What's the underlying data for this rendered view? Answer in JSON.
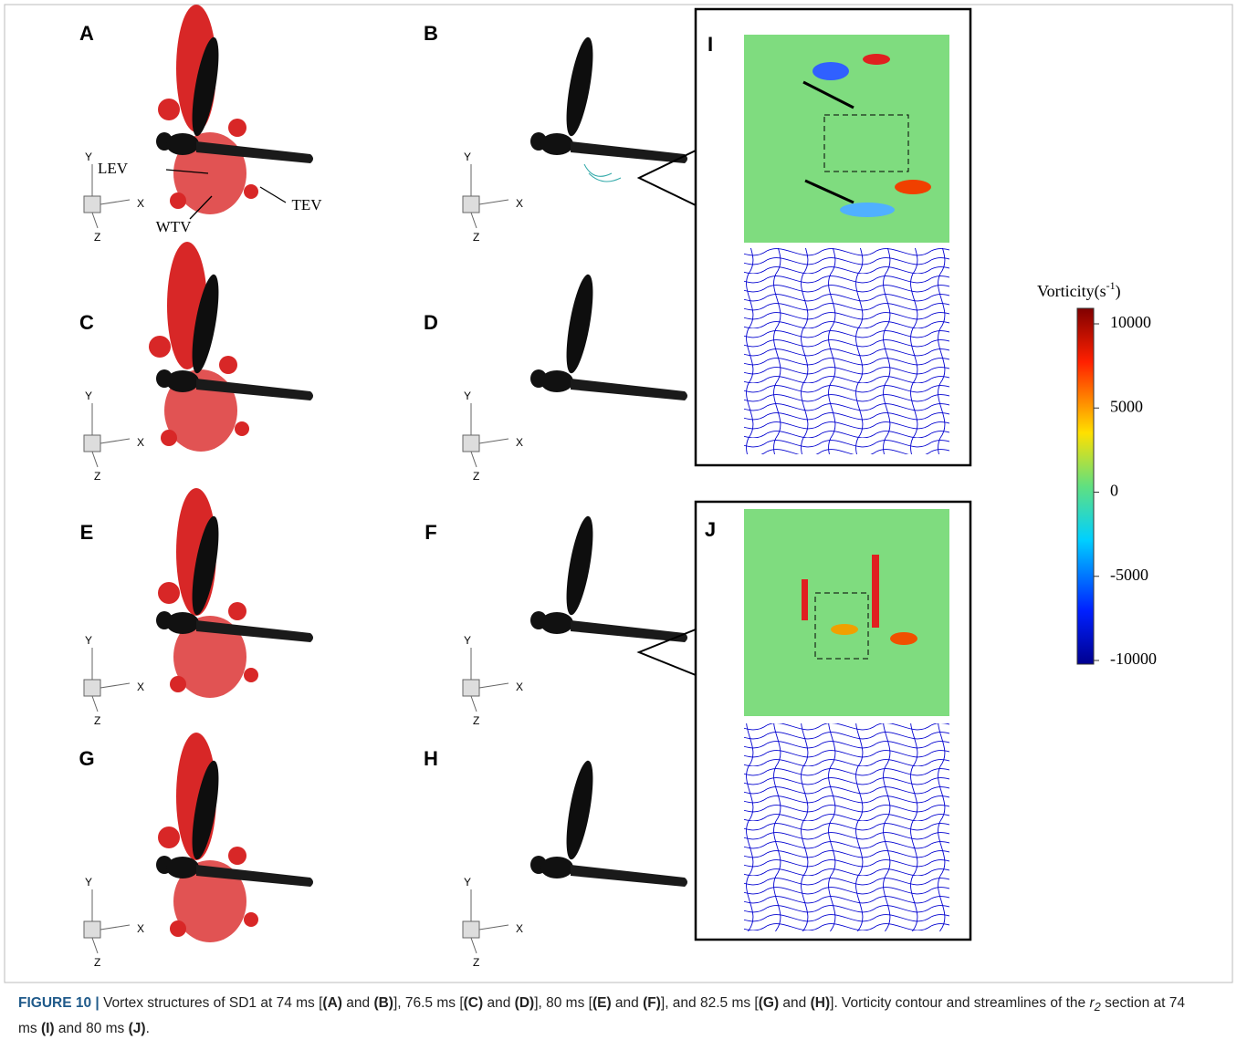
{
  "panel_labels": [
    "A",
    "B",
    "C",
    "D",
    "E",
    "F",
    "G",
    "H",
    "I",
    "J"
  ],
  "annotations": {
    "lev": "LEV",
    "wtv": "WTV",
    "tev": "TEV"
  },
  "axes_triads": [
    {
      "y": "Y",
      "x": "X",
      "z": "Z"
    },
    {
      "y": "Y",
      "x": "X",
      "z": "Z"
    },
    {
      "y": "Y",
      "x": "X",
      "z": "Z"
    },
    {
      "y": "Y",
      "x": "X",
      "z": "Z"
    },
    {
      "y": "Y",
      "x": "X",
      "z": "Z"
    },
    {
      "y": "Y",
      "x": "X",
      "z": "Z"
    },
    {
      "y": "Y",
      "x": "X",
      "z": "Z"
    },
    {
      "y": "Y",
      "x": "X",
      "z": "Z"
    }
  ],
  "colorbar": {
    "title": "Vorticity(s",
    "title_sup": "-1",
    "title_end": ")",
    "range": [
      -10000,
      10000
    ],
    "ticks": [
      10000,
      5000,
      0,
      -5000,
      -10000
    ]
  },
  "caption": {
    "segments": [
      {
        "text": "FIGURE 10 | ",
        "style": "bold"
      },
      {
        "text": "Vortex structures of SD1 at 74 ms [",
        "style": "normal"
      },
      {
        "text": "(A)",
        "style": "bold"
      },
      {
        "text": " and ",
        "style": "normal"
      },
      {
        "text": "(B)",
        "style": "bold"
      },
      {
        "text": "], 76.5 ms [",
        "style": "normal"
      },
      {
        "text": "(C)",
        "style": "bold"
      },
      {
        "text": " and ",
        "style": "normal"
      },
      {
        "text": "(D)",
        "style": "bold"
      },
      {
        "text": "], 80 ms [",
        "style": "normal"
      },
      {
        "text": "(E)",
        "style": "bold"
      },
      {
        "text": " and ",
        "style": "normal"
      },
      {
        "text": "(F)",
        "style": "bold"
      },
      {
        "text": "], and 82.5 ms [",
        "style": "normal"
      },
      {
        "text": "(G)",
        "style": "bold"
      },
      {
        "text": " and ",
        "style": "normal"
      },
      {
        "text": "(H)",
        "style": "bold"
      },
      {
        "text": "]. Vorticity contour and streamlines of the ",
        "style": "normal"
      },
      {
        "text": "r",
        "style": "italic"
      },
      {
        "text": "2",
        "style": "italic-sub"
      },
      {
        "text": " section at 74 ms ",
        "style": "normal"
      },
      {
        "text": "(I)",
        "style": "bold"
      },
      {
        "text": " and 80 ms ",
        "style": "normal"
      },
      {
        "text": "(J)",
        "style": "bold"
      },
      {
        "text": ".",
        "style": "normal"
      }
    ]
  }
}
